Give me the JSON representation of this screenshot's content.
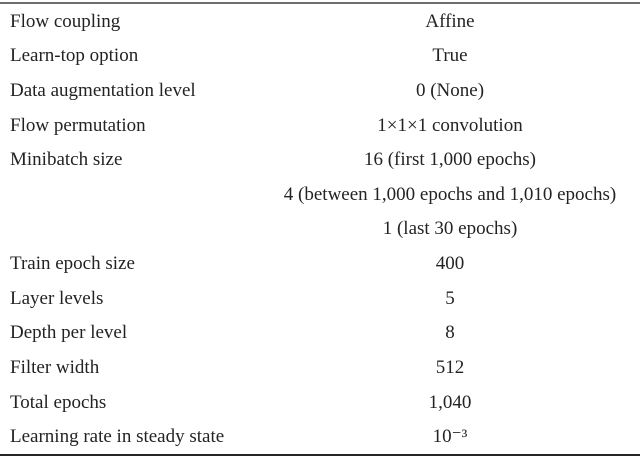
{
  "table": {
    "description_rows_note": "",
    "rows": [
      {
        "param": "Flow coupling",
        "value": "Affine"
      },
      {
        "param": "Learn-top option",
        "value": "True"
      },
      {
        "param": "Data augmentation level",
        "value": "0 (None)"
      },
      {
        "param": "Flow permutation",
        "value": "1×1×1 convolution"
      },
      {
        "param": "Minibatch size",
        "value": "16 (first 1,000 epochs)"
      },
      {
        "param": "",
        "value": "4 (between 1,000 epochs and 1,010 epochs)"
      },
      {
        "param": "",
        "value": "1 (last 30 epochs)"
      },
      {
        "param": "Train epoch size",
        "value": "400"
      },
      {
        "param": "Layer levels",
        "value": "5"
      },
      {
        "param": "Depth per level",
        "value": "8"
      },
      {
        "param": "Filter width",
        "value": "512"
      },
      {
        "param": "Total epochs",
        "value": "1,040"
      },
      {
        "param": "Learning rate in steady state",
        "value": "10⁻³"
      }
    ],
    "colors": {
      "text": "#232323",
      "top_rule": "#6e6e6e",
      "bottom_rule": "#262626",
      "background": "#ffffff"
    }
  }
}
